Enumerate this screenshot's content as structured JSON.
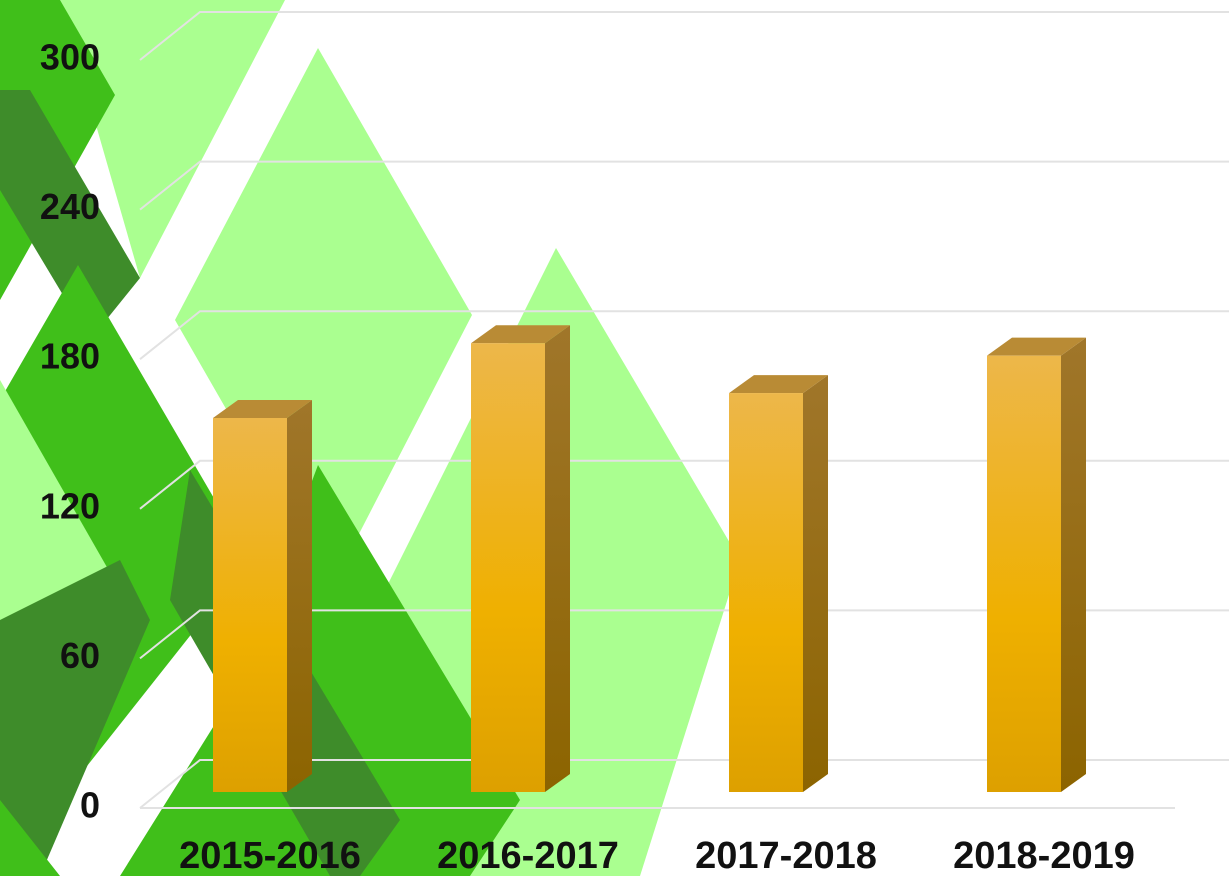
{
  "chart_data": {
    "type": "bar3d",
    "categories": [
      "2015-2016",
      "2016-2017",
      "2017-2018",
      "2018-2019"
    ],
    "values": [
      150,
      180,
      160,
      175
    ],
    "ylim": [
      0,
      300
    ],
    "yticks": [
      0,
      60,
      120,
      180,
      240,
      300
    ],
    "grid": true,
    "color": "#eab22e"
  }
}
